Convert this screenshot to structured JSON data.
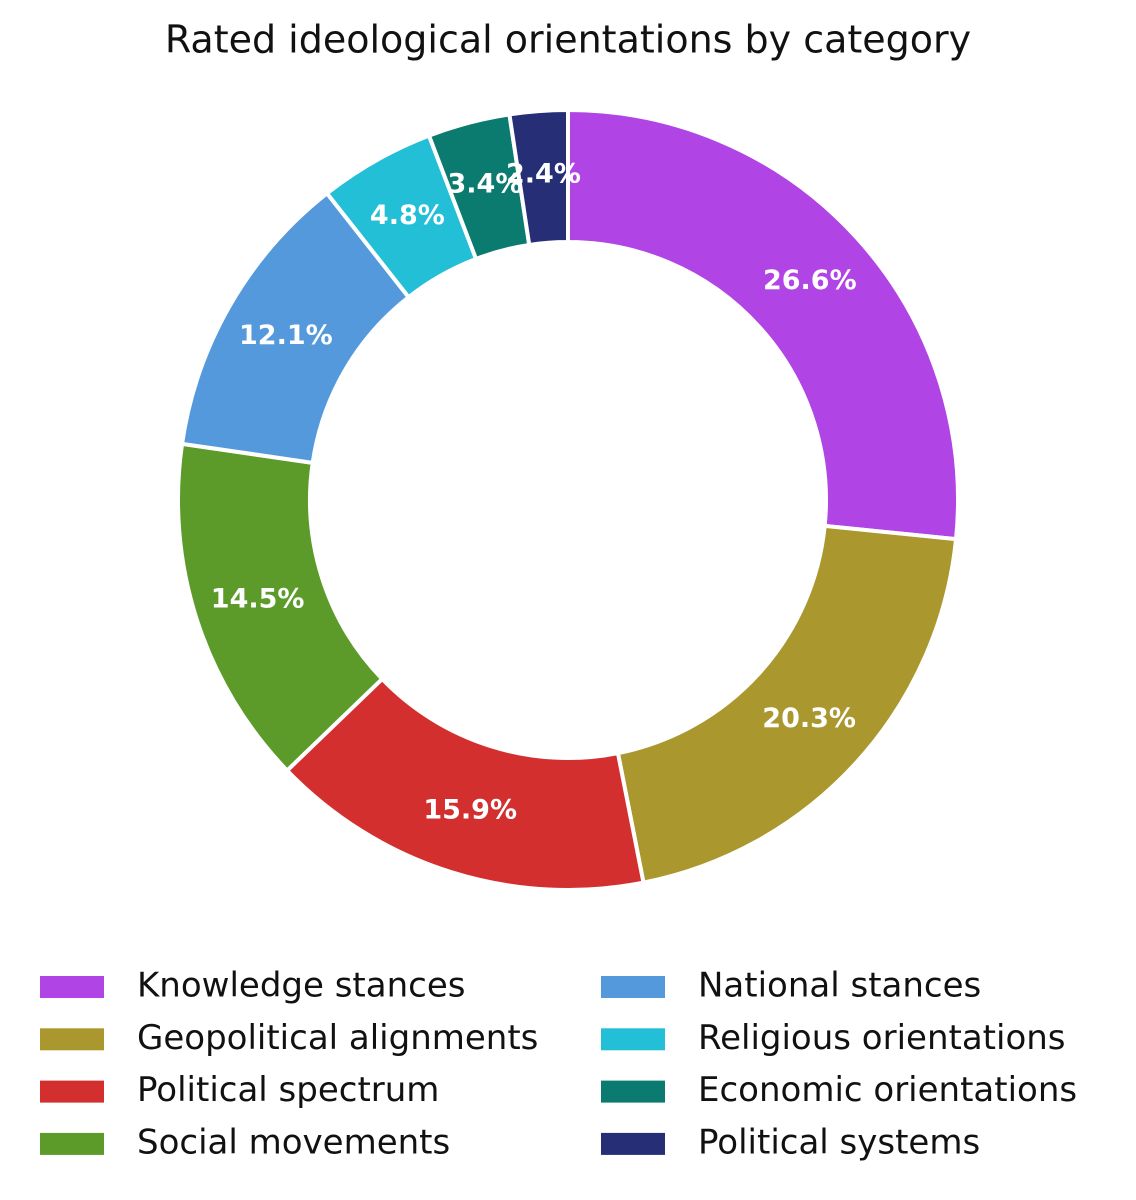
{
  "chart_data": {
    "type": "donut",
    "title": "Rated ideological orientations by category",
    "categories": [
      "Knowledge stances",
      "Geopolitical alignments",
      "Political spectrum",
      "Social movements",
      "National stances",
      "Religious orientations",
      "Economic orientations",
      "Political systems"
    ],
    "values": [
      26.6,
      20.3,
      15.9,
      14.5,
      12.1,
      4.8,
      3.4,
      2.4
    ],
    "value_labels": [
      "26.6%",
      "20.3%",
      "15.9%",
      "14.5%",
      "12.1%",
      "4.8%",
      "3.4%",
      "2.4%"
    ],
    "colors": [
      "#b044e4",
      "#aa982e",
      "#d32f2f",
      "#5c9b2a",
      "#5599dd",
      "#22bfd6",
      "#0b7a6f",
      "#262e75"
    ],
    "legend": "bottom"
  }
}
